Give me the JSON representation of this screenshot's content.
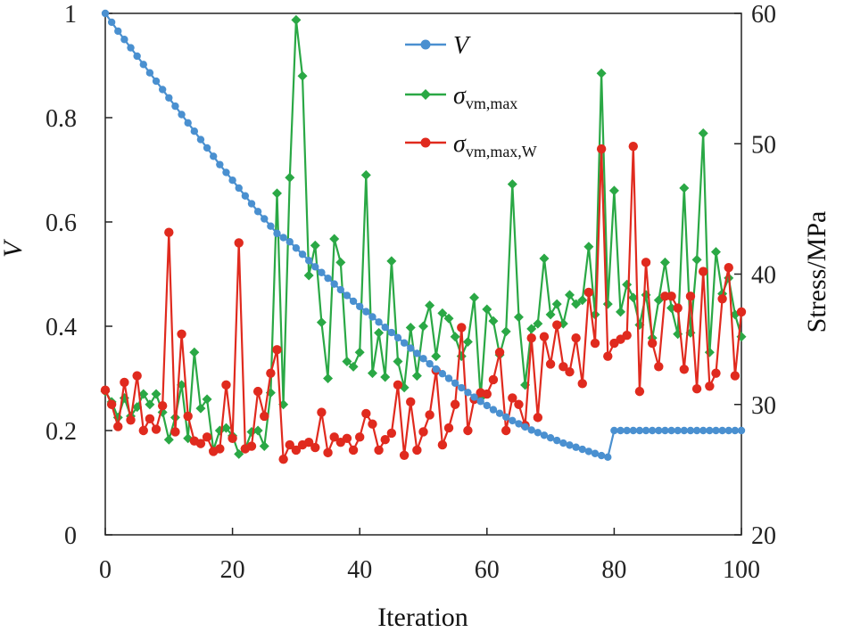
{
  "chart_data": {
    "type": "line",
    "title": "",
    "xlabel": "Iteration",
    "ylabel": "V",
    "y2label": "Stress/MPa",
    "xlim": [
      0,
      100
    ],
    "ylim": [
      0,
      1
    ],
    "y2lim": [
      20,
      60
    ],
    "xticks": [
      "0",
      "20",
      "40",
      "60",
      "80",
      "100"
    ],
    "yticks": [
      "0",
      "0.2",
      "0.4",
      "0.6",
      "0.8",
      "1"
    ],
    "y2ticks": [
      "20",
      "30",
      "40",
      "50",
      "60"
    ],
    "grid": false,
    "legend_position": "top-center",
    "colors": {
      "V": "#4a90d0",
      "svm": "#2aa845",
      "svmw": "#e02a1e"
    },
    "legend": [
      {
        "main": "V",
        "sub": ""
      },
      {
        "main": "σ",
        "sub": "vm,max"
      },
      {
        "main": "σ",
        "sub": "vm,max,W"
      }
    ],
    "series": [
      {
        "name": "V",
        "axis": "left",
        "marker": "circle",
        "values": [
          1.0,
          0.983,
          0.966,
          0.95,
          0.934,
          0.918,
          0.902,
          0.886,
          0.87,
          0.854,
          0.838,
          0.822,
          0.806,
          0.79,
          0.774,
          0.758,
          0.742,
          0.726,
          0.71,
          0.695,
          0.68,
          0.665,
          0.65,
          0.635,
          0.62,
          0.606,
          0.592,
          0.578,
          0.57,
          0.562,
          0.55,
          0.538,
          0.526,
          0.514,
          0.503,
          0.492,
          0.481,
          0.47,
          0.459,
          0.448,
          0.438,
          0.428,
          0.418,
          0.408,
          0.398,
          0.388,
          0.378,
          0.368,
          0.358,
          0.348,
          0.338,
          0.328,
          0.318,
          0.309,
          0.3,
          0.291,
          0.282,
          0.273,
          0.264,
          0.256,
          0.248,
          0.24,
          0.233,
          0.226,
          0.219,
          0.213,
          0.207,
          0.201,
          0.196,
          0.191,
          0.186,
          0.181,
          0.176,
          0.172,
          0.168,
          0.164,
          0.16,
          0.156,
          0.152,
          0.149,
          0.2,
          0.2,
          0.2,
          0.2,
          0.2,
          0.2,
          0.2,
          0.2,
          0.2,
          0.2,
          0.2,
          0.2,
          0.2,
          0.2,
          0.2,
          0.2,
          0.2,
          0.2,
          0.2,
          0.2,
          0.2
        ]
      },
      {
        "name": "σvm,max",
        "axis": "right",
        "marker": "diamond",
        "values": [
          31.0,
          30.2,
          29.0,
          30.5,
          29.1,
          29.8,
          30.8,
          30.0,
          30.8,
          29.4,
          27.3,
          29.0,
          31.5,
          27.4,
          34.0,
          29.7,
          30.4,
          26.5,
          28.0,
          28.2,
          27.6,
          26.2,
          26.6,
          27.9,
          28.0,
          26.8,
          30.9,
          46.2,
          30.0,
          47.4,
          59.5,
          55.2,
          39.9,
          42.2,
          36.3,
          32.0,
          42.7,
          40.9,
          33.3,
          32.9,
          34.0,
          47.6,
          32.4,
          35.5,
          32.1,
          41.0,
          33.3,
          31.3,
          35.9,
          32.2,
          36.0,
          37.6,
          33.7,
          37.0,
          36.6,
          35.2,
          33.7,
          34.8,
          38.2,
          30.5,
          37.3,
          36.4,
          33.8,
          35.6,
          46.9,
          36.7,
          31.5,
          35.8,
          36.2,
          41.2,
          36.9,
          37.7,
          36.2,
          38.4,
          37.7,
          38.0,
          42.1,
          36.9,
          55.4,
          37.7,
          46.4,
          37.1,
          39.2,
          38.2,
          36.1,
          38.4,
          35.1,
          38.0,
          40.9,
          37.4,
          35.4,
          46.6,
          35.5,
          41.1,
          50.8,
          34.0,
          41.7,
          38.5,
          39.7,
          36.9,
          35.2
        ]
      },
      {
        "name": "σvm,max,W",
        "axis": "right",
        "marker": "circle",
        "values": [
          31.1,
          30.0,
          28.3,
          31.7,
          28.8,
          32.2,
          28.0,
          28.9,
          28.1,
          29.9,
          43.2,
          27.9,
          35.4,
          29.1,
          27.2,
          27.0,
          27.5,
          26.4,
          26.6,
          31.5,
          27.4,
          42.4,
          26.6,
          26.8,
          31.0,
          29.1,
          32.4,
          34.2,
          25.8,
          26.9,
          26.5,
          26.9,
          27.1,
          26.7,
          29.4,
          26.3,
          27.5,
          27.1,
          27.4,
          26.5,
          27.5,
          29.3,
          28.5,
          26.5,
          27.3,
          27.8,
          31.5,
          26.1,
          30.2,
          26.5,
          27.9,
          29.2,
          32.6,
          26.9,
          28.2,
          30.0,
          35.9,
          28.0,
          30.4,
          30.9,
          30.8,
          31.9,
          34.0,
          28.0,
          30.5,
          30.0,
          28.4,
          35.1,
          29.0,
          35.2,
          33.1,
          36.1,
          32.9,
          32.5,
          35.1,
          31.6,
          38.6,
          34.7,
          49.6,
          33.7,
          34.7,
          35.0,
          35.3,
          49.8,
          31.0,
          40.9,
          34.7,
          32.9,
          38.3,
          38.3,
          37.4,
          32.7,
          38.3,
          31.2,
          40.2,
          31.4,
          32.4,
          38.1,
          40.5,
          32.2,
          37.1
        ]
      }
    ]
  }
}
